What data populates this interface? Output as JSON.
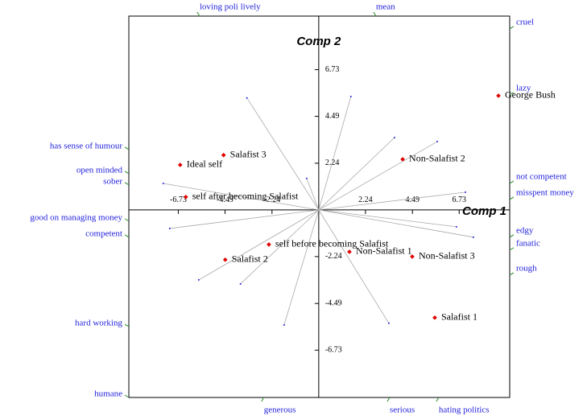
{
  "chart_data": {
    "type": "biplot",
    "x_label": "Comp 1",
    "y_label": "Comp 2",
    "xlim": [
      -9.1,
      9.15
    ],
    "ylim": [
      -9.0,
      9.3
    ],
    "xticks": [
      -6.73,
      -4.49,
      -2.24,
      2.24,
      4.49,
      6.73
    ],
    "yticks": [
      -6.73,
      -4.49,
      -2.24,
      2.24,
      4.49,
      6.73
    ],
    "element_color": "#e00000",
    "vector_color": "#aaaaaa",
    "construct_color": "#2222dd",
    "construct_tick_color": "#2a8a2a",
    "elements": [
      {
        "name": "George Bush",
        "x": 8.61,
        "y": 5.48
      },
      {
        "name": "Salafist 3",
        "x": -4.56,
        "y": 2.63
      },
      {
        "name": "Ideal self",
        "x": -6.64,
        "y": 2.16
      },
      {
        "name": "Non-Salafist 2",
        "x": 4.02,
        "y": 2.43
      },
      {
        "name": "self after becoming Salafist",
        "x": -6.37,
        "y": 0.62
      },
      {
        "name": "self before becoming Salafist",
        "x": -2.39,
        "y": -1.66
      },
      {
        "name": "Salafist 2",
        "x": -4.48,
        "y": -2.39
      },
      {
        "name": "Non-Salafist 1",
        "x": 1.47,
        "y": -2.01
      },
      {
        "name": "Non-Salafist 3",
        "x": 4.48,
        "y": -2.24
      },
      {
        "name": "Salafist 1",
        "x": 5.56,
        "y": -5.17
      }
    ],
    "vectors": {
      "x": [
        -3.44,
        1.54,
        3.63,
        5.68,
        -0.58,
        -7.45,
        7.03,
        -7.14,
        6.6,
        7.41,
        -5.75,
        -3.75,
        -1.66,
        3.36
      ],
      "y": [
        5.37,
        5.44,
        3.47,
        3.28,
        1.51,
        1.27,
        0.85,
        -0.89,
        -0.81,
        -1.31,
        -3.36,
        -3.55,
        -5.52,
        -5.44
      ]
    },
    "constructs": {
      "top": [
        {
          "text": "loving poli lively",
          "pos": -5.71
        },
        {
          "text": "mean",
          "pos": 2.74
        }
      ],
      "bottom": [
        {
          "text": "generous",
          "pos": -2.63
        },
        {
          "text": "serious",
          "pos": 3.4
        },
        {
          "text": "hating politics",
          "pos": 5.75
        }
      ],
      "left": [
        {
          "text": "has sense of humour",
          "pos": 2.9
        },
        {
          "text": "open minded",
          "pos": 1.74
        },
        {
          "text": "sober",
          "pos": 1.2
        },
        {
          "text": "good on managing money",
          "pos": -0.54
        },
        {
          "text": "competent",
          "pos": -1.31
        },
        {
          "text": "hard working",
          "pos": -5.6
        },
        {
          "text": "humane",
          "pos": -9.0
        }
      ],
      "right": [
        {
          "text": "cruel",
          "pos": 8.69
        },
        {
          "text": "lazy",
          "pos": 5.52
        },
        {
          "text": "not competent",
          "pos": 1.27
        },
        {
          "text": "misspent money",
          "pos": 0.5
        },
        {
          "text": "edgy",
          "pos": -1.31
        },
        {
          "text": "fanatic",
          "pos": -1.93
        },
        {
          "text": "rough",
          "pos": -3.13
        }
      ]
    }
  }
}
